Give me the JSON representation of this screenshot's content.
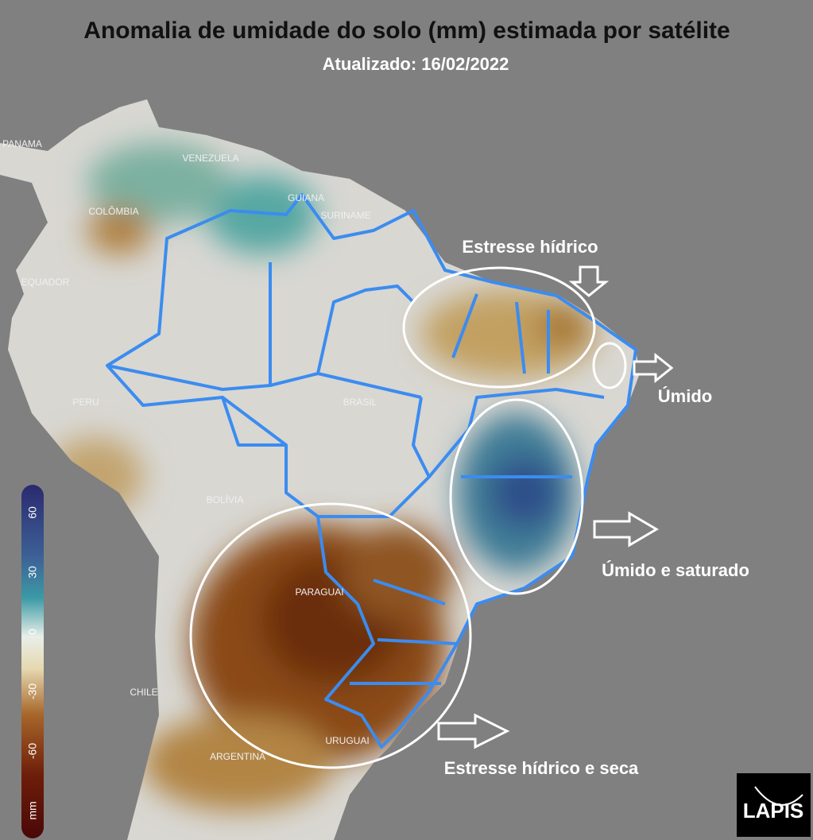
{
  "header": {
    "title": "Anomalia de umidade do solo (mm) estimada por satélite",
    "subtitle": "Atualizado: 16/02/2022"
  },
  "map": {
    "labels": [
      "PANAMA",
      "VENEZUELA",
      "GUIANA",
      "SURINAME",
      "COLÔMBIA",
      "EQUADOR",
      "PERU",
      "BRASIL",
      "BOLÍVIA",
      "PARAGUAI",
      "CHILE",
      "ARGENTINA",
      "URUGUAI"
    ]
  },
  "annotations": [
    "Estresse hídrico",
    "Úmido",
    "Úmido e saturado",
    "Estresse hídrico e seca"
  ],
  "legend": {
    "ticks": [
      60,
      30,
      0,
      -30,
      -60
    ],
    "unit": "mm"
  },
  "logo": "LAPIS"
}
